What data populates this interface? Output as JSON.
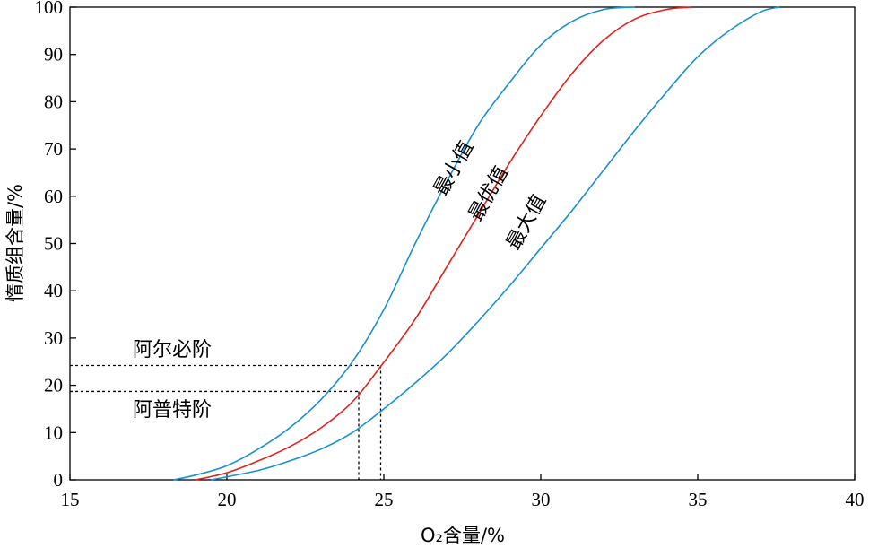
{
  "chart_data": {
    "type": "line",
    "xlabel": "O₂含量/%",
    "ylabel": "惰质组含量/%",
    "xlim": [
      15,
      40
    ],
    "ylim": [
      0,
      100
    ],
    "x_ticks": [
      15,
      20,
      25,
      30,
      35,
      40
    ],
    "y_ticks": [
      0,
      10,
      20,
      30,
      40,
      50,
      60,
      70,
      80,
      90,
      100
    ],
    "grid": false,
    "series": [
      {
        "name": "最小值",
        "color": "#1a8fd0",
        "x": [
          18.3,
          19.0,
          20.0,
          21.0,
          22.0,
          23.0,
          24.0,
          25.0,
          26.0,
          27.0,
          28.0,
          29.0,
          30.0,
          31.0,
          32.0,
          33.0
        ],
        "y": [
          0,
          1,
          3,
          6.5,
          11,
          17,
          25,
          36,
          50,
          63,
          75,
          84,
          92,
          97,
          99.5,
          100
        ]
      },
      {
        "name": "最优值",
        "color": "#e0201b",
        "x": [
          19.0,
          20.0,
          21.0,
          22.0,
          23.0,
          24.0,
          24.9,
          26.0,
          27.0,
          28.0,
          29.0,
          30.0,
          31.0,
          32.0,
          33.0,
          34.0,
          34.8
        ],
        "y": [
          0,
          1.5,
          4,
          7,
          11,
          16.5,
          24,
          34,
          45,
          56,
          67,
          77,
          86,
          93,
          97.5,
          99.5,
          100
        ]
      },
      {
        "name": "最大值",
        "color": "#1a8fd0",
        "x": [
          19.5,
          21.0,
          22.0,
          23.0,
          24.0,
          25.0,
          26.0,
          27.0,
          28.0,
          29.0,
          30.0,
          31.0,
          32.0,
          33.0,
          34.0,
          35.0,
          36.0,
          37.0,
          37.6
        ],
        "y": [
          0,
          2,
          4,
          6.5,
          10,
          15,
          20.5,
          26.5,
          33.5,
          41,
          49,
          57,
          65.5,
          74,
          82,
          89.5,
          95,
          99,
          100
        ]
      }
    ],
    "annotations": [
      {
        "text": "阿尔必阶",
        "y": 24.2,
        "x_end": 24.9
      },
      {
        "text": "阿普特阶",
        "y": 18.7,
        "x_end": 24.2
      }
    ]
  }
}
